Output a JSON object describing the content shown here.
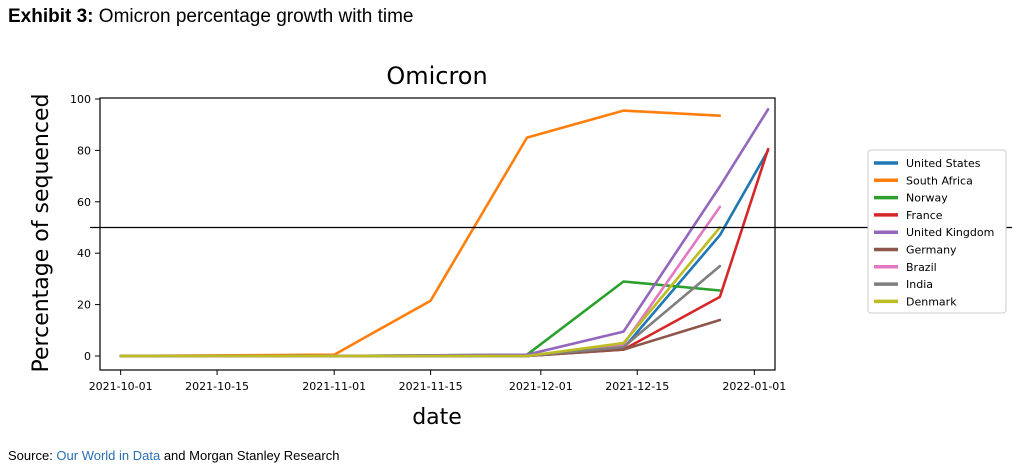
{
  "exhibit": {
    "label": "Exhibit 3:",
    "title": "Omicron percentage growth with time"
  },
  "source": {
    "prefix": "Source: ",
    "link_text": "Our World in Data",
    "suffix": " and Morgan Stanley Research"
  },
  "chart_data": {
    "type": "line",
    "title": "Omicron",
    "xlabel": "date",
    "ylabel": "Percentage of sequenced",
    "ylim": [
      0,
      100
    ],
    "yticks": [
      0,
      20,
      40,
      60,
      80,
      100
    ],
    "xlim": [
      "2021-09-28",
      "2022-01-04"
    ],
    "xticks": [
      "2021-10-01",
      "2021-10-15",
      "2021-11-01",
      "2021-11-15",
      "2021-12-01",
      "2021-12-15",
      "2022-01-01"
    ],
    "hline": 50,
    "legend_position": "right",
    "series": [
      {
        "name": "United States",
        "color": "#1f77b4",
        "points": [
          [
            "2021-10-01",
            0
          ],
          [
            "2021-11-01",
            0
          ],
          [
            "2021-11-29",
            0
          ],
          [
            "2021-12-13",
            3
          ],
          [
            "2021-12-27",
            47
          ],
          [
            "2022-01-03",
            80
          ]
        ]
      },
      {
        "name": "South Africa",
        "color": "#ff7f0e",
        "points": [
          [
            "2021-10-01",
            0
          ],
          [
            "2021-11-01",
            0.5
          ],
          [
            "2021-11-15",
            21.5
          ],
          [
            "2021-11-29",
            85
          ],
          [
            "2021-12-13",
            95.5
          ],
          [
            "2021-12-27",
            93.5
          ]
        ]
      },
      {
        "name": "Norway",
        "color": "#2ca02c",
        "points": [
          [
            "2021-10-01",
            0
          ],
          [
            "2021-11-01",
            0
          ],
          [
            "2021-11-29",
            0.5
          ],
          [
            "2021-12-13",
            29
          ],
          [
            "2021-12-27",
            25.5
          ]
        ]
      },
      {
        "name": "France",
        "color": "#d62728",
        "points": [
          [
            "2021-10-01",
            0
          ],
          [
            "2021-11-01",
            0
          ],
          [
            "2021-11-29",
            0
          ],
          [
            "2021-12-13",
            2.5
          ],
          [
            "2021-12-27",
            23
          ],
          [
            "2022-01-03",
            80.5
          ]
        ]
      },
      {
        "name": "United Kingdom",
        "color": "#9467bd",
        "points": [
          [
            "2021-10-01",
            0
          ],
          [
            "2021-11-01",
            0
          ],
          [
            "2021-11-29",
            0.5
          ],
          [
            "2021-12-13",
            9.5
          ],
          [
            "2021-12-27",
            66
          ],
          [
            "2022-01-03",
            96
          ]
        ]
      },
      {
        "name": "Germany",
        "color": "#8c564b",
        "points": [
          [
            "2021-10-01",
            0
          ],
          [
            "2021-11-01",
            0
          ],
          [
            "2021-11-29",
            0
          ],
          [
            "2021-12-13",
            2.5
          ],
          [
            "2021-12-27",
            14
          ]
        ]
      },
      {
        "name": "Brazil",
        "color": "#e377c2",
        "points": [
          [
            "2021-10-01",
            0
          ],
          [
            "2021-11-01",
            0
          ],
          [
            "2021-11-29",
            0
          ],
          [
            "2021-12-13",
            4.5
          ],
          [
            "2021-12-27",
            58
          ]
        ]
      },
      {
        "name": "India",
        "color": "#7f7f7f",
        "points": [
          [
            "2021-10-01",
            0
          ],
          [
            "2021-11-01",
            0
          ],
          [
            "2021-11-29",
            0
          ],
          [
            "2021-12-13",
            3.5
          ],
          [
            "2021-12-27",
            35
          ]
        ]
      },
      {
        "name": "Denmark",
        "color": "#bcbd22",
        "points": [
          [
            "2021-10-01",
            0
          ],
          [
            "2021-11-01",
            0
          ],
          [
            "2021-11-29",
            0
          ],
          [
            "2021-12-13",
            5
          ],
          [
            "2021-12-27",
            50
          ]
        ]
      }
    ]
  }
}
